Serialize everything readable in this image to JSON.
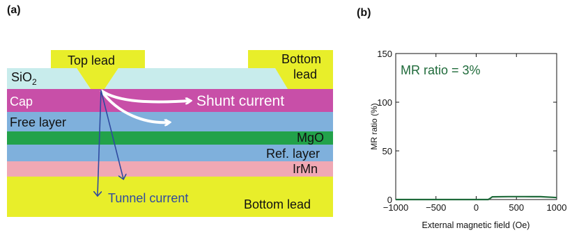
{
  "panel_a": {
    "label": "(a)",
    "top_lead": "Top lead",
    "bottom_lead_top": "Bottom lead",
    "sio2_main": "SiO",
    "sio2_sub": "2",
    "cap": "Cap",
    "shunt_current": "Shunt current",
    "free_layer": "Free layer",
    "mgo": "MgO",
    "ref_layer": "Ref. layer",
    "irmn": "IrMn",
    "tunnel_current": "Tunnel current",
    "bottom_lead": "Bottom lead",
    "colors": {
      "lead": "#e8ee2a",
      "sio2": "#c8ecec",
      "cap": "#c84fa8",
      "free": "#7fb0dc",
      "mgo": "#22a24a",
      "ref": "#7fb0dc",
      "irmn": "#f0a8b4",
      "arrow_blue": "#2f4aa0",
      "text_blue": "#2f4aa0"
    }
  },
  "panel_b": {
    "label": "(b)",
    "annotation": "MR ratio  = 3%",
    "annotation_color": "#1f6a3a"
  },
  "chart_data": {
    "type": "line",
    "xlabel": "External magnetic field (Oe)",
    "ylabel": "MR ratio (%)",
    "xlim": [
      -1000,
      1000
    ],
    "ylim": [
      0,
      150
    ],
    "xticks": [
      -1000,
      -500,
      0,
      500,
      1000
    ],
    "xtick_labels": [
      "−1000",
      "−500",
      "0",
      "500",
      "1000"
    ],
    "yticks": [
      0,
      50,
      100,
      150
    ],
    "ytick_labels": [
      "0",
      "50",
      "100",
      "150"
    ],
    "grid": false,
    "series": [
      {
        "color": "#1f6a3a",
        "x": [
          -1000,
          -500,
          0,
          150,
          170,
          200,
          400,
          600,
          800,
          950,
          1000
        ],
        "y": [
          0,
          0,
          0,
          0,
          1,
          2.8,
          3,
          3,
          2.9,
          2.3,
          2
        ]
      }
    ]
  }
}
